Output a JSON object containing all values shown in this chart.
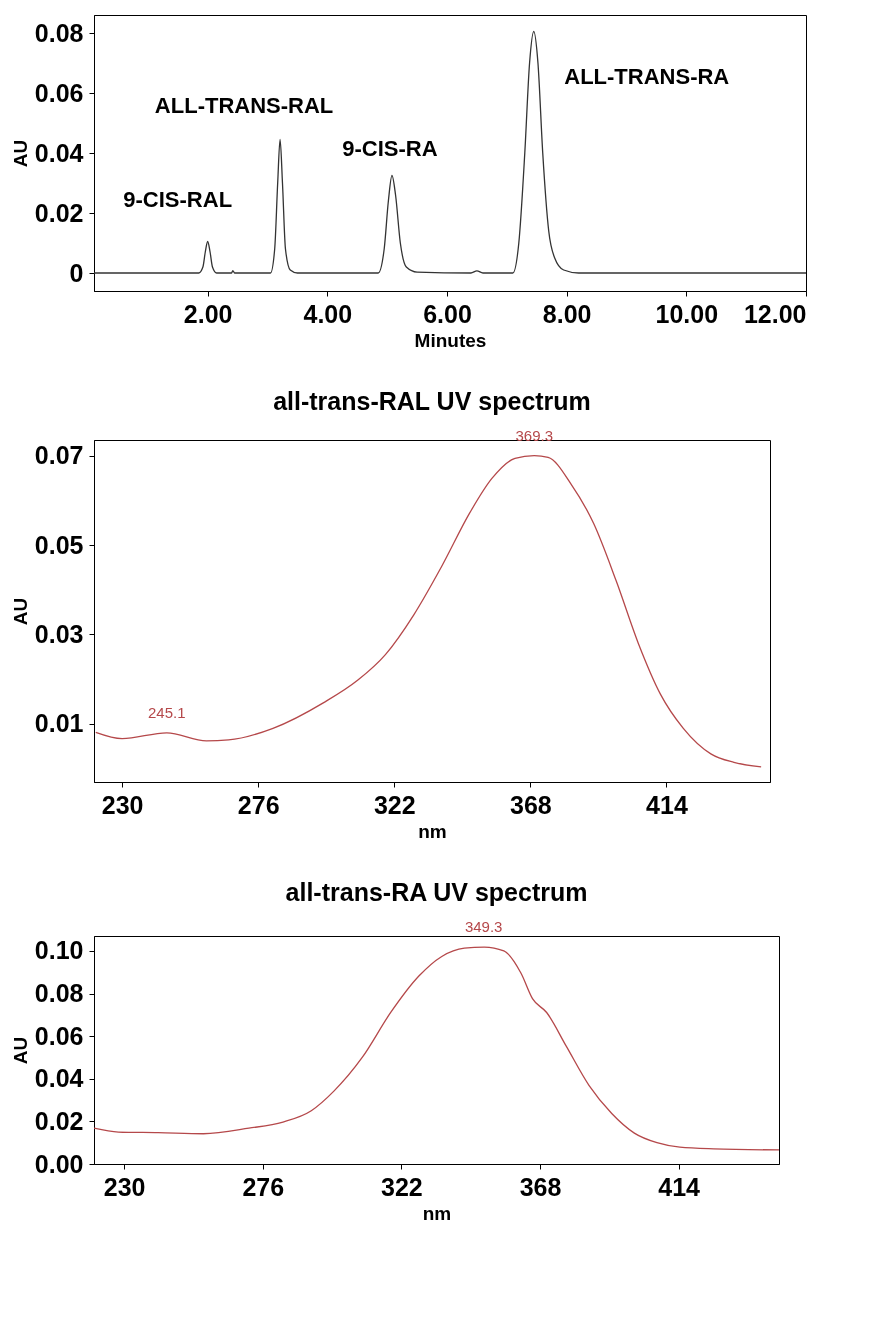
{
  "chart_data": [
    {
      "type": "line",
      "xlabel": "Minutes",
      "ylabel": "AU",
      "xlim": [
        0.1,
        12
      ],
      "ylim": [
        -0.006,
        0.086
      ],
      "xticks": [
        {
          "value": 2,
          "label": "2.00"
        },
        {
          "value": 4,
          "label": "4.00"
        },
        {
          "value": 6,
          "label": "6.00"
        },
        {
          "value": 8,
          "label": "8.00"
        },
        {
          "value": 10,
          "label": "10.00"
        },
        {
          "value": 12,
          "label": "12.00"
        }
      ],
      "yticks": [
        0,
        0.02,
        0.04,
        0.06,
        0.08
      ],
      "grid": false,
      "series": [
        {
          "color": "#333333",
          "x": [
            0.1,
            1.85,
            1.92,
            1.96,
            2.0,
            2.04,
            2.08,
            2.15,
            2.4,
            2.42,
            2.45,
            3.05,
            3.12,
            3.17,
            3.21,
            3.25,
            3.3,
            3.38,
            3.5,
            4.85,
            4.95,
            5.02,
            5.08,
            5.14,
            5.22,
            5.32,
            5.5,
            6.4,
            6.5,
            6.6,
            7.1,
            7.2,
            7.3,
            7.38,
            7.45,
            7.52,
            7.6,
            7.7,
            7.8,
            7.95,
            8.2,
            12
          ],
          "values": [
            0,
            0,
            0.002,
            0.007,
            0.0105,
            0.007,
            0.002,
            0,
            0,
            0.0008,
            0,
            0,
            0.008,
            0.03,
            0.0445,
            0.03,
            0.008,
            0.001,
            0,
            0,
            0.008,
            0.024,
            0.0325,
            0.026,
            0.01,
            0.002,
            0.0003,
            0,
            0.0007,
            0,
            0,
            0.01,
            0.04,
            0.07,
            0.0805,
            0.07,
            0.04,
            0.014,
            0.005,
            0.001,
            0,
            0
          ]
        }
      ],
      "annotations": [
        {
          "text": "9-CIS-RAL",
          "x": 2.0,
          "y": 0.0105
        },
        {
          "text": "ALL-TRANS-RAL",
          "x": 3.21,
          "y": 0.0445
        },
        {
          "text": "9-CIS-RA",
          "x": 5.08,
          "y": 0.0325
        },
        {
          "text": "ALL-TRANS-RA",
          "x": 7.45,
          "y": 0.0805
        }
      ]
    },
    {
      "type": "line",
      "title": "all-trans-RAL UV spectrum",
      "xlabel": "nm",
      "ylabel": "AU",
      "xlim": [
        220.5,
        449
      ],
      "ylim": [
        -0.003,
        0.0735
      ],
      "xticks": [
        230,
        276,
        322,
        368,
        414
      ],
      "yticks": [
        0.01,
        0.03,
        0.05,
        0.07
      ],
      "grid": false,
      "series": [
        {
          "color": "#b5484a",
          "x": [
            221.1,
            230,
            245.1,
            258.5,
            266,
            281,
            298,
            309.7,
            319,
            328.6,
            338,
            347.6,
            355,
            362.8,
            369.3,
            374,
            381.8,
            389.4,
            397,
            404.5,
            412,
            419.7,
            429,
            436.8,
            446
          ],
          "values": [
            0.0081,
            0.0067,
            0.008,
            0.0062,
            0.0064,
            0.009,
            0.0147,
            0.0198,
            0.0255,
            0.0344,
            0.0452,
            0.0573,
            0.0649,
            0.0694,
            0.07,
            0.0696,
            0.0636,
            0.0548,
            0.042,
            0.028,
            0.0166,
            0.009,
            0.0033,
            0.0014,
            0.0004
          ]
        }
      ],
      "annotations": [
        {
          "text": "369.3",
          "x": 369.3,
          "y": 0.07
        },
        {
          "text": "245.1",
          "x": 245.1,
          "y": 0.008
        }
      ]
    },
    {
      "type": "line",
      "title": "all-trans-RA UV spectrum",
      "xlabel": "nm",
      "ylabel": "AU",
      "xlim": [
        220,
        447.3
      ],
      "ylim": [
        0,
        0.107
      ],
      "xticks": [
        230,
        276,
        322,
        368,
        414
      ],
      "yticks": [
        {
          "value": 0,
          "label": "0.00"
        },
        0.02,
        0.04,
        0.06,
        0.08,
        {
          "value": 0.1,
          "label": "0.10"
        }
      ],
      "grid": false,
      "series": [
        {
          "color": "#b5484a",
          "x": [
            220,
            228.1,
            241.3,
            256.3,
            271.4,
            282.7,
            292.1,
            299.6,
            309,
            318.4,
            327.8,
            335.4,
            342.9,
            349.5,
            356,
            361.7,
            365.5,
            370.2,
            376.7,
            384.3,
            391.8,
            399.3,
            406.8,
            414.4,
            425.7,
            447.3
          ],
          "values": [
            0.0168,
            0.015,
            0.0147,
            0.0142,
            0.0168,
            0.0197,
            0.025,
            0.0342,
            0.05,
            0.071,
            0.0882,
            0.0974,
            0.1013,
            0.1018,
            0.1,
            0.0895,
            0.0776,
            0.0711,
            0.0553,
            0.0368,
            0.0237,
            0.0145,
            0.01,
            0.0079,
            0.0071,
            0.0066
          ]
        }
      ],
      "annotations": [
        {
          "text": "349.3",
          "x": 349.3,
          "y": 0.1018
        }
      ]
    }
  ]
}
